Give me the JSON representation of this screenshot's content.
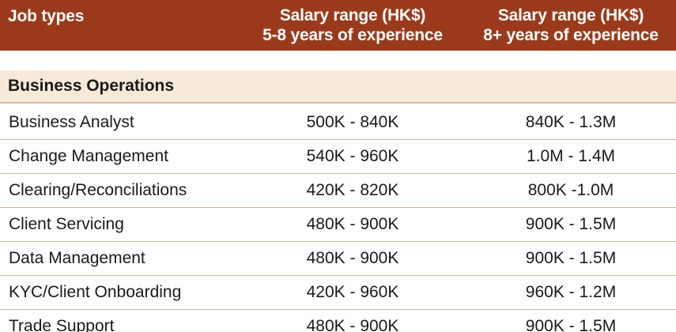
{
  "header": {
    "job_types": "Job types",
    "col2_line1": "Salary range (HK$)",
    "col2_line2": "5-8 years of experience",
    "col3_line1": "Salary range (HK$)",
    "col3_line2": "8+ years of experience"
  },
  "colors": {
    "header_bg": "#9b3a1b",
    "section_bg": "#f7ead9",
    "divider": "#d9b89a"
  },
  "section": {
    "title": "Business Operations"
  },
  "rows": [
    {
      "job": "Business Analyst",
      "range_5_8": "500K - 840K",
      "range_8_plus": "840K - 1.3M"
    },
    {
      "job": "Change Management",
      "range_5_8": "540K - 960K",
      "range_8_plus": "1.0M - 1.4M"
    },
    {
      "job": "Clearing/Reconciliations",
      "range_5_8": "420K - 820K",
      "range_8_plus": "800K -1.0M"
    },
    {
      "job": "Client Servicing",
      "range_5_8": "480K - 900K",
      "range_8_plus": "900K - 1.5M"
    },
    {
      "job": "Data Management",
      "range_5_8": "480K - 900K",
      "range_8_plus": "900K - 1.5M"
    },
    {
      "job": "KYC/Client Onboarding",
      "range_5_8": "420K - 960K",
      "range_8_plus": "960K - 1.2M"
    },
    {
      "job": "Trade Support",
      "range_5_8": "480K - 900K",
      "range_8_plus": "900K - 1.5M"
    }
  ]
}
